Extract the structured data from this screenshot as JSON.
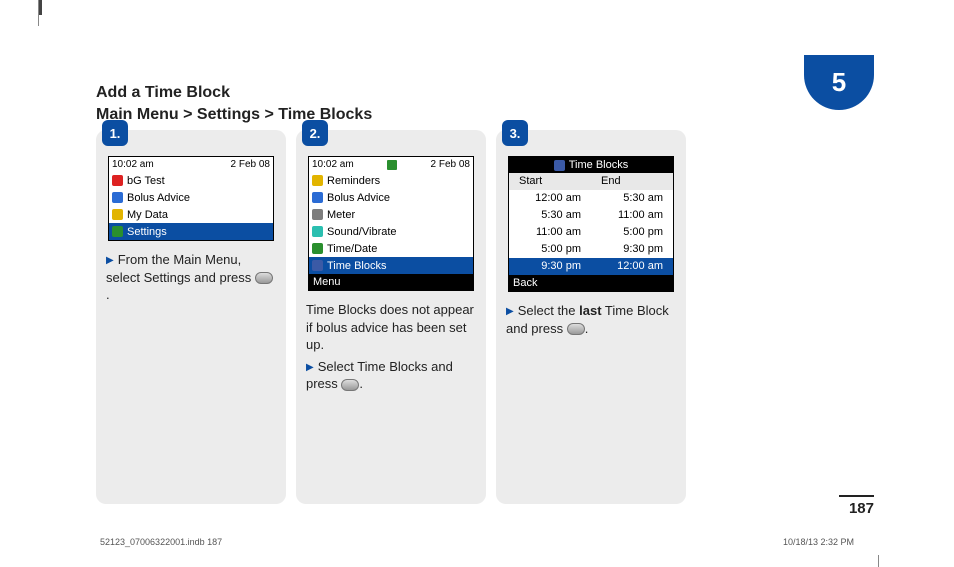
{
  "chapter": "5",
  "section_title_line1": "Add a Time Block",
  "section_breadcrumb": "Main Menu > Settings > Time Blocks",
  "page_number": "187",
  "imprint_left": "52123_07006322001.indb   187",
  "imprint_right": "10/18/13   2:32 PM",
  "colors": {
    "brand_blue": "#0b4ea2",
    "card_bg": "#ececec",
    "black": "#000000",
    "white": "#ffffff",
    "icon_red": "#d22",
    "icon_green": "#2a8f2e",
    "icon_blue": "#2a6bd4",
    "icon_yellow": "#e2b400",
    "icon_gray": "#7d7d7d",
    "icon_teal": "#2bbfb0",
    "icon_purple": "#3b5aa6"
  },
  "steps": [
    {
      "badge": "1.",
      "screen": {
        "status_left": "10:02 am",
        "status_right": "2 Feb 08",
        "items": [
          {
            "icon_color": "#d22",
            "label": "bG Test",
            "selected": false
          },
          {
            "icon_color": "#2a6bd4",
            "label": "Bolus Advice",
            "selected": false
          },
          {
            "icon_color": "#e2b400",
            "label": "My Data",
            "selected": false
          },
          {
            "icon_color": "#2a8f2e",
            "label": "Settings",
            "selected": true
          }
        ]
      },
      "instruction_lines": [
        {
          "bullet": true,
          "html": "From the Main Menu, select Settings and press {OK}."
        }
      ]
    },
    {
      "badge": "2.",
      "screen": {
        "status_left": "10:02 am",
        "status_right": "2 Feb 08",
        "status_mid_icon": true,
        "items": [
          {
            "icon_color": "#e2b400",
            "label": "Reminders",
            "selected": false
          },
          {
            "icon_color": "#2a6bd4",
            "label": "Bolus Advice",
            "selected": false
          },
          {
            "icon_color": "#7d7d7d",
            "label": "Meter",
            "selected": false
          },
          {
            "icon_color": "#2bbfb0",
            "label": "Sound/Vibrate",
            "selected": false
          },
          {
            "icon_color": "#2a8f2e",
            "label": "Time/Date",
            "selected": false
          },
          {
            "icon_color": "#3b5aa6",
            "label": "Time Blocks",
            "selected": true
          }
        ],
        "softkey_left": "Menu"
      },
      "instruction_prenote": "Time Blocks does not appear if bolus advice has been set up.",
      "instruction_lines": [
        {
          "bullet": true,
          "html": "Select Time Blocks and press {OK}."
        }
      ]
    },
    {
      "badge": "3.",
      "screen": {
        "title": "Time Blocks",
        "title_icon_color": "#3b5aa6",
        "table_head": [
          "Start",
          "End"
        ],
        "table_rows": [
          {
            "start": "12:00 am",
            "end": "5:30 am",
            "selected": false
          },
          {
            "start": "5:30 am",
            "end": "11:00 am",
            "selected": false
          },
          {
            "start": "11:00 am",
            "end": "5:00 pm",
            "selected": false
          },
          {
            "start": "5:00 pm",
            "end": "9:30 pm",
            "selected": false
          },
          {
            "start": "9:30 pm",
            "end": "12:00 am",
            "selected": true
          }
        ],
        "softkey_left": "Back"
      },
      "instruction_lines": [
        {
          "bullet": true,
          "html": "Select the <b>last</b> Time Block and press {OK}."
        }
      ]
    }
  ]
}
